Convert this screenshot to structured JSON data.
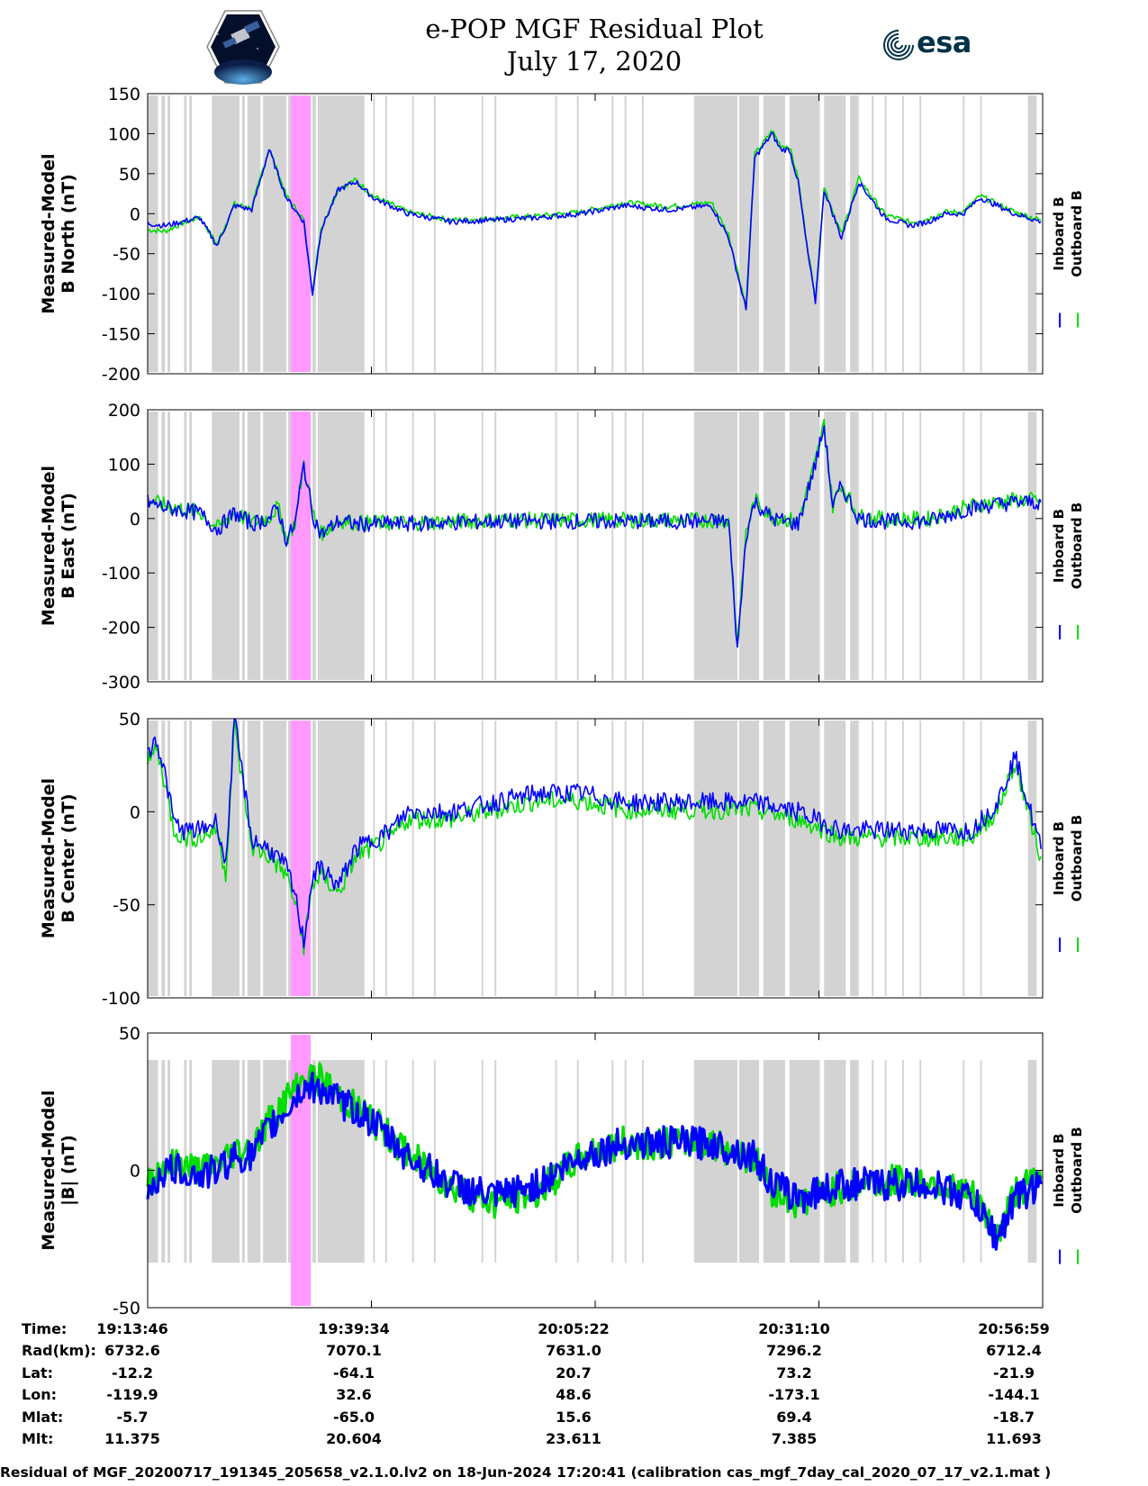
{
  "title": {
    "line1": "e-POP MGF Residual Plot",
    "line2": "July 17, 2020"
  },
  "logos": {
    "left_logo": "cassiope-mission-patch",
    "right_logo_text": "esa"
  },
  "legend": {
    "inboard_label": "Inboard B",
    "outboard_label": "Outboard B",
    "inboard_color": "#0000ff",
    "outboard_color": "#00dd00"
  },
  "colors": {
    "gap_shading": "#d3d3d3",
    "highlight": "#ff99ff"
  },
  "x_ticks": [
    "19:13:46",
    "19:39:34",
    "20:05:22",
    "20:31:10",
    "20:56:59"
  ],
  "chart_data": [
    {
      "type": "line",
      "ylabel_line1": "Measured-Model",
      "ylabel_line2": "B North (nT)",
      "ylim": [
        -200,
        150
      ],
      "yticks": [
        "150",
        "100",
        "50",
        "0",
        "-50",
        "-100",
        "-150",
        "-200"
      ],
      "x_minutes": [
        0,
        2,
        4,
        6,
        8,
        10,
        12,
        14,
        16,
        18,
        19,
        20,
        22,
        24,
        26,
        28,
        30,
        35,
        40,
        45,
        50,
        55,
        60,
        65,
        67,
        69,
        70,
        72,
        73,
        74,
        75,
        76,
        77,
        78,
        80,
        82,
        85,
        88,
        90,
        92,
        94,
        96,
        100,
        103
      ],
      "series": [
        {
          "name": "Inboard B",
          "values": [
            -12,
            -15,
            -10,
            -5,
            -40,
            10,
            5,
            80,
            20,
            -10,
            -100,
            -20,
            30,
            40,
            20,
            10,
            0,
            -10,
            -8,
            -5,
            0,
            10,
            5,
            10,
            -30,
            -120,
            70,
            100,
            80,
            80,
            40,
            -40,
            -110,
            30,
            -30,
            40,
            -5,
            -15,
            -10,
            0,
            0,
            20,
            0,
            -10
          ]
        },
        {
          "name": "Outboard B",
          "values": [
            -20,
            -22,
            -12,
            -4,
            -38,
            12,
            7,
            82,
            22,
            -8,
            -98,
            -18,
            32,
            42,
            22,
            12,
            2,
            -8,
            -6,
            -3,
            2,
            14,
            9,
            14,
            -26,
            -116,
            74,
            104,
            85,
            84,
            44,
            -36,
            -106,
            34,
            -26,
            44,
            -1,
            -11,
            -6,
            2,
            2,
            22,
            2,
            -8
          ]
        }
      ],
      "highlight_range_minutes": [
        16.5,
        18.8
      ]
    },
    {
      "type": "line",
      "ylabel_line1": "Measured-Model",
      "ylabel_line2": "B East (nT)",
      "ylim": [
        -300,
        200
      ],
      "yticks": [
        "200",
        "100",
        "0",
        "-100",
        "-200",
        "-300"
      ],
      "x_minutes": [
        0,
        2,
        4,
        6,
        8,
        10,
        12,
        14,
        15,
        16,
        17,
        18,
        19,
        20,
        22,
        24,
        26,
        30,
        40,
        50,
        60,
        65,
        67,
        68,
        69,
        70,
        72,
        75,
        77,
        78,
        79,
        80,
        82,
        85,
        90,
        95,
        100,
        103
      ],
      "series": [
        {
          "name": "Inboard B",
          "values": [
            30,
            20,
            15,
            10,
            -20,
            10,
            -10,
            0,
            20,
            -40,
            -10,
            100,
            10,
            -30,
            -5,
            -10,
            -10,
            -10,
            -5,
            -5,
            -5,
            -5,
            -5,
            -240,
            -30,
            30,
            0,
            -10,
            100,
            170,
            20,
            60,
            0,
            -5,
            -5,
            20,
            30,
            30
          ]
        },
        {
          "name": "Outboard B",
          "values": [
            34,
            24,
            18,
            12,
            -18,
            12,
            -8,
            2,
            22,
            -38,
            -8,
            102,
            12,
            -28,
            -3,
            -8,
            -8,
            -8,
            -3,
            -3,
            -3,
            -3,
            -3,
            -236,
            -26,
            34,
            4,
            -6,
            104,
            174,
            24,
            64,
            4,
            -1,
            -1,
            24,
            34,
            34
          ]
        }
      ],
      "highlight_range_minutes": [
        16.5,
        18.8
      ]
    },
    {
      "type": "line",
      "ylabel_line1": "Measured-Model",
      "ylabel_line2": "B Center (nT)",
      "ylim": [
        -100,
        50
      ],
      "yticks": [
        "50",
        "0",
        "-50",
        "-100"
      ],
      "x_minutes": [
        0,
        1,
        2,
        3,
        4,
        6,
        8,
        9,
        10,
        12,
        14,
        16,
        17,
        18,
        19,
        20,
        22,
        24,
        26,
        28,
        30,
        35,
        40,
        45,
        50,
        55,
        60,
        65,
        70,
        75,
        80,
        85,
        90,
        95,
        98,
        100,
        103
      ],
      "series": [
        {
          "name": "Inboard B",
          "values": [
            30,
            40,
            20,
            -5,
            -10,
            -10,
            -5,
            -30,
            50,
            -15,
            -20,
            -30,
            -45,
            -70,
            -35,
            -30,
            -40,
            -20,
            -15,
            -10,
            0,
            0,
            5,
            10,
            10,
            5,
            5,
            5,
            5,
            0,
            -10,
            -10,
            -10,
            -10,
            5,
            30,
            -20
          ]
        },
        {
          "name": "Outboard B",
          "values": [
            25,
            35,
            15,
            -9,
            -14,
            -14,
            -9,
            -34,
            46,
            -19,
            -24,
            -34,
            -49,
            -72,
            -39,
            -34,
            -44,
            -24,
            -19,
            -14,
            -4,
            -4,
            1,
            6,
            6,
            1,
            1,
            1,
            1,
            -4,
            -14,
            -14,
            -14,
            -14,
            1,
            26,
            -24
          ]
        }
      ],
      "highlight_range_minutes": [
        16.5,
        18.8
      ]
    },
    {
      "type": "line",
      "ylabel_line1": "Measured-Model",
      "ylabel_line2": "|B| (nT)",
      "ylim": [
        -50,
        50
      ],
      "yticks": [
        "50",
        "0",
        "-50"
      ],
      "x_minutes": [
        0,
        2,
        4,
        6,
        8,
        10,
        12,
        14,
        16,
        18,
        20,
        22,
        25,
        30,
        35,
        40,
        45,
        50,
        55,
        60,
        65,
        70,
        72,
        75,
        80,
        85,
        90,
        95,
        98,
        100,
        103
      ],
      "series": [
        {
          "name": "Inboard B",
          "values": [
            -7,
            0,
            0,
            -2,
            0,
            5,
            5,
            15,
            22,
            30,
            30,
            25,
            20,
            5,
            -5,
            -10,
            -5,
            5,
            10,
            10,
            10,
            5,
            -5,
            -10,
            -5,
            -5,
            -5,
            -10,
            -25,
            -10,
            -5
          ]
        },
        {
          "name": "Outboard B",
          "values": [
            -4,
            2,
            2,
            0,
            2,
            7,
            8,
            18,
            26,
            33,
            33,
            27,
            21,
            6,
            -6,
            -12,
            -8,
            5,
            10,
            10,
            10,
            4,
            -7,
            -12,
            -6,
            -4,
            -4,
            -9,
            -24,
            -8,
            -3
          ]
        }
      ],
      "highlight_range_minutes": [
        16.5,
        18.8
      ]
    }
  ],
  "gap_shading_minutes": [
    [
      0,
      1.2
    ],
    [
      1.6,
      2.0
    ],
    [
      2.3,
      2.6
    ],
    [
      4.2,
      4.5
    ],
    [
      4.8,
      5.1
    ],
    [
      7.4,
      10.6
    ],
    [
      10.9,
      11.2
    ],
    [
      11.5,
      13.0
    ],
    [
      13.3,
      16.0
    ],
    [
      16.2,
      16.5
    ],
    [
      19.0,
      19.4
    ],
    [
      19.6,
      25.0
    ],
    [
      26.0,
      26.2
    ],
    [
      27.4,
      27.6
    ],
    [
      30.5,
      30.7
    ],
    [
      33.0,
      33.2
    ],
    [
      38.5,
      38.7
    ],
    [
      40.0,
      40.2
    ],
    [
      47.0,
      47.2
    ],
    [
      49.5,
      49.7
    ],
    [
      53.5,
      53.7
    ],
    [
      55.0,
      55.2
    ],
    [
      57.0,
      57.2
    ],
    [
      63.0,
      68.0
    ],
    [
      68.2,
      70.5
    ],
    [
      71.0,
      73.5
    ],
    [
      74.0,
      77.5
    ],
    [
      78.0,
      80.5
    ],
    [
      81.0,
      82.0
    ],
    [
      83.5,
      83.7
    ],
    [
      85.0,
      85.2
    ],
    [
      87.0,
      87.2
    ],
    [
      89.0,
      89.2
    ],
    [
      94.0,
      94.2
    ],
    [
      96.0,
      96.2
    ],
    [
      101.5,
      102.5
    ]
  ],
  "info_table": {
    "labels": [
      "Time:",
      "Rad(km):",
      "Lat:",
      "Lon:",
      "Mlat:",
      "Mlt:"
    ],
    "columns": [
      [
        "19:13:46",
        "6732.6",
        "-12.2",
        "-119.9",
        "-5.7",
        "11.375"
      ],
      [
        "19:39:34",
        "7070.1",
        "-64.1",
        "32.6",
        "-65.0",
        "20.604"
      ],
      [
        "20:05:22",
        "7631.0",
        "20.7",
        "48.6",
        "15.6",
        "23.611"
      ],
      [
        "20:31:10",
        "7296.2",
        "73.2",
        "-173.1",
        "69.4",
        "7.385"
      ],
      [
        "20:56:59",
        "6712.4",
        "-21.9",
        "-144.1",
        "-18.7",
        "11.693"
      ]
    ]
  },
  "footer": "Residual of MGF_20200717_191345_205658_v2.1.0.lv2 on 18-Jun-2024 17:20:41 (calibration cas_mgf_7day_cal_2020_07_17_v2.1.mat )"
}
